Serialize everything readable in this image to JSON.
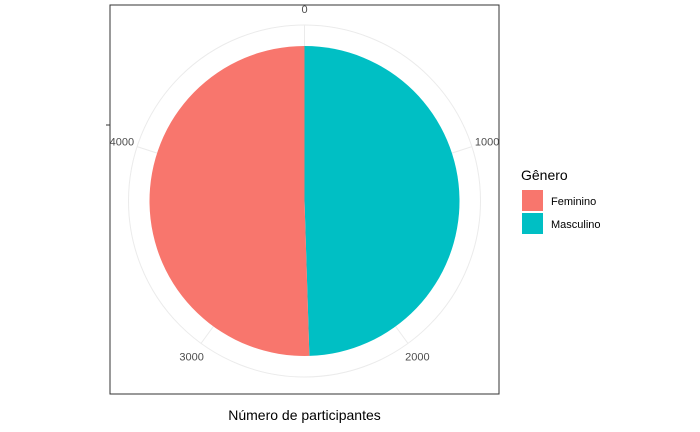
{
  "chart_data": {
    "type": "pie",
    "coord": "polar",
    "categories": [
      "Masculino",
      "Feminino"
    ],
    "values": [
      2475,
      2525
    ],
    "colors": {
      "Feminino": "#F8766D",
      "Masculino": "#00BFC4"
    },
    "theta_ticks": [
      0,
      1000,
      2000,
      3000,
      4000
    ],
    "theta_tick_labels": [
      "0",
      "1000",
      "2000",
      "3000",
      "4000"
    ],
    "xlabel": "Número de participantes",
    "ylabel": "",
    "legend": {
      "title": "Gênero",
      "placement": "right",
      "entries": [
        "Feminino",
        "Masculino"
      ]
    },
    "grid": true
  }
}
